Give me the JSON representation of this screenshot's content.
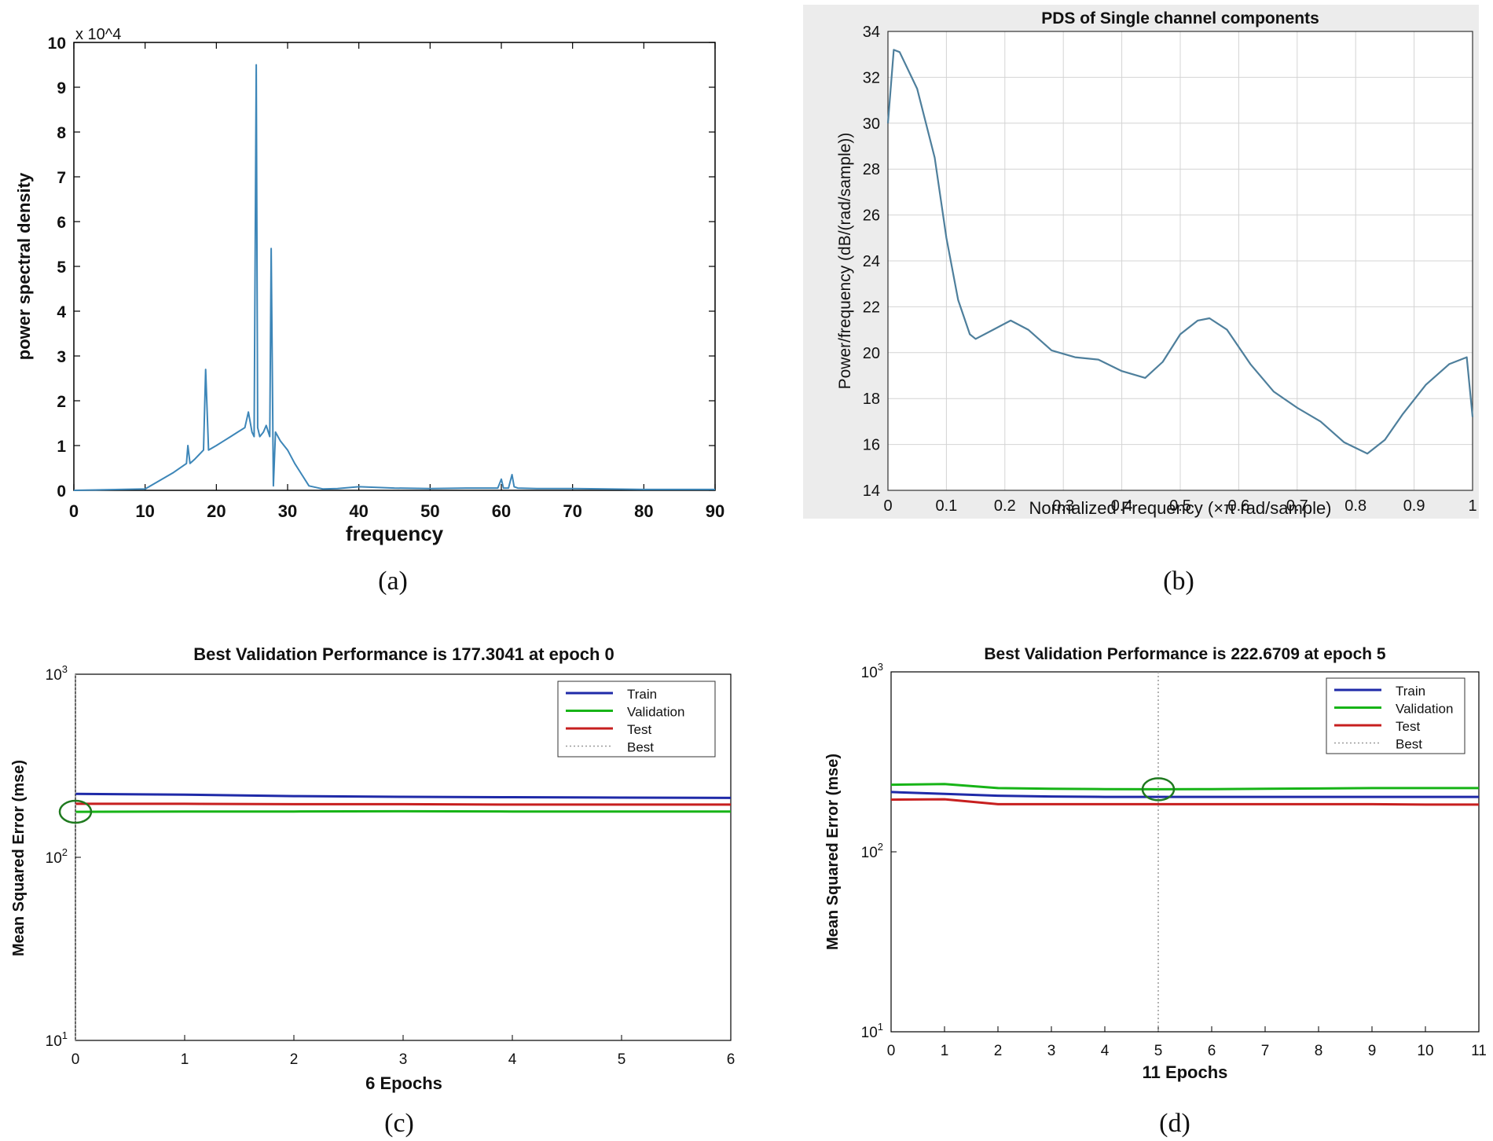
{
  "captions": [
    "(a)",
    "(b)",
    "(c)",
    "(d)"
  ],
  "colors": {
    "psd_line": "#3d86b8",
    "pds_line": "#4e7f9c",
    "train": "#1f2aa8",
    "validation": "#17b417",
    "test": "#c71f1f",
    "best": "#9a9a9a",
    "best_circle": "#1f7a1f",
    "panel_b_bg": "#ececec"
  },
  "chart_data": [
    {
      "type": "line",
      "panel": "a",
      "title": "",
      "xlabel": "frequency",
      "ylabel": "power spectral density",
      "scale_label": "x 10^4",
      "xlim": [
        0,
        90
      ],
      "ylim": [
        0,
        10
      ],
      "xticks": [
        0,
        10,
        20,
        30,
        40,
        50,
        60,
        70,
        80,
        90
      ],
      "yticks": [
        0,
        1,
        2,
        3,
        4,
        5,
        6,
        7,
        8,
        9,
        10
      ],
      "x": [
        0,
        10,
        14,
        15.8,
        16,
        16.3,
        17,
        18.2,
        18.5,
        18.9,
        20,
        21,
        22,
        23,
        24,
        24.5,
        25,
        25.3,
        25.6,
        25.8,
        26.1,
        26.6,
        27,
        27.5,
        27.7,
        28,
        28.3,
        29,
        30,
        31,
        32,
        33,
        35,
        37,
        40,
        45,
        50,
        55,
        59.5,
        60,
        60.3,
        61,
        61.5,
        61.8,
        62.3,
        65,
        70,
        80,
        90
      ],
      "values": [
        0,
        0.03,
        0.4,
        0.6,
        1.0,
        0.6,
        0.7,
        0.9,
        2.7,
        0.9,
        1.0,
        1.1,
        1.2,
        1.3,
        1.4,
        1.75,
        1.3,
        1.2,
        9.5,
        1.4,
        1.2,
        1.3,
        1.45,
        1.2,
        5.4,
        0.1,
        1.3,
        1.1,
        0.9,
        0.6,
        0.35,
        0.1,
        0.03,
        0.04,
        0.08,
        0.05,
        0.04,
        0.05,
        0.05,
        0.25,
        0.05,
        0.05,
        0.35,
        0.08,
        0.05,
        0.04,
        0.04,
        0.02,
        0.02
      ]
    },
    {
      "type": "line",
      "panel": "b",
      "title": "PDS of Single channel components",
      "xlabel": "Normalized Frequency  (×π rad/sample)",
      "ylabel": "Power/frequency (dB/(rad/sample))",
      "xlim": [
        0,
        1
      ],
      "ylim": [
        14,
        34
      ],
      "xticks": [
        0,
        0.1,
        0.2,
        0.3,
        0.4,
        0.5,
        0.6,
        0.7,
        0.8,
        0.9,
        1
      ],
      "yticks": [
        14,
        16,
        18,
        20,
        22,
        24,
        26,
        28,
        30,
        32,
        34
      ],
      "x": [
        0,
        0.01,
        0.02,
        0.05,
        0.08,
        0.1,
        0.12,
        0.14,
        0.15,
        0.18,
        0.21,
        0.24,
        0.28,
        0.32,
        0.36,
        0.4,
        0.44,
        0.47,
        0.5,
        0.53,
        0.55,
        0.58,
        0.62,
        0.66,
        0.7,
        0.74,
        0.78,
        0.82,
        0.85,
        0.88,
        0.92,
        0.96,
        0.99,
        1.0
      ],
      "values": [
        30.0,
        33.2,
        33.1,
        31.5,
        28.5,
        25.0,
        22.3,
        20.8,
        20.6,
        21.0,
        21.4,
        21.0,
        20.1,
        19.8,
        19.7,
        19.2,
        18.9,
        19.6,
        20.8,
        21.4,
        21.5,
        21.0,
        19.5,
        18.3,
        17.6,
        17.0,
        16.1,
        15.6,
        16.2,
        17.3,
        18.6,
        19.5,
        19.8,
        17.2
      ]
    },
    {
      "type": "line",
      "panel": "c",
      "title": "Best Validation Performance is 177.3041 at epoch 0",
      "xlabel": "6 Epochs",
      "ylabel": "Mean Squared Error  (mse)",
      "yscale": "log",
      "xlim": [
        0,
        6
      ],
      "ylim": [
        10,
        1000
      ],
      "xticks": [
        0,
        1,
        2,
        3,
        4,
        5,
        6
      ],
      "yticks": [
        {
          "v": 10,
          "b": "10",
          "e": "1"
        },
        {
          "v": 100,
          "b": "10",
          "e": "2"
        },
        {
          "v": 1000,
          "b": "10",
          "e": "3"
        }
      ],
      "x": [
        0,
        1,
        2,
        3,
        4,
        5,
        6
      ],
      "series": [
        {
          "name": "Train",
          "values": [
            222,
            220,
            216,
            214,
            213,
            212,
            211
          ]
        },
        {
          "name": "Validation",
          "values": [
            177.3,
            178,
            178,
            178.5,
            178,
            178,
            178
          ]
        },
        {
          "name": "Test",
          "values": [
            196,
            196,
            195,
            195,
            194,
            194,
            194
          ]
        }
      ],
      "best": {
        "epoch": 0,
        "value": 177.3041
      },
      "legend": [
        "Train",
        "Validation",
        "Test",
        "Best"
      ],
      "legend_position": "top-right"
    },
    {
      "type": "line",
      "panel": "d",
      "title": "Best Validation Performance is 222.6709 at epoch 5",
      "xlabel": "11 Epochs",
      "ylabel": "Mean Squared Error  (mse)",
      "yscale": "log",
      "xlim": [
        0,
        11
      ],
      "ylim": [
        10,
        1000
      ],
      "xticks": [
        0,
        1,
        2,
        3,
        4,
        5,
        6,
        7,
        8,
        9,
        10,
        11
      ],
      "yticks": [
        {
          "v": 10,
          "b": "10",
          "e": "1"
        },
        {
          "v": 100,
          "b": "10",
          "e": "2"
        },
        {
          "v": 1000,
          "b": "10",
          "e": "3"
        }
      ],
      "x": [
        0,
        1,
        2,
        3,
        4,
        5,
        6,
        7,
        8,
        9,
        10,
        11
      ],
      "series": [
        {
          "name": "Train",
          "values": [
            215,
            210,
            205,
            203,
            202,
            202,
            202,
            202,
            202,
            202,
            202,
            202
          ]
        },
        {
          "name": "Validation",
          "values": [
            236,
            238,
            226,
            224,
            223,
            222.7,
            223,
            224,
            225,
            226,
            226,
            226
          ]
        },
        {
          "name": "Test",
          "values": [
            195,
            196,
            184,
            184,
            184,
            184,
            184,
            184,
            184,
            184,
            183,
            183
          ]
        }
      ],
      "best": {
        "epoch": 5,
        "value": 222.6709
      },
      "legend": [
        "Train",
        "Validation",
        "Test",
        "Best"
      ],
      "legend_position": "top-right"
    }
  ]
}
